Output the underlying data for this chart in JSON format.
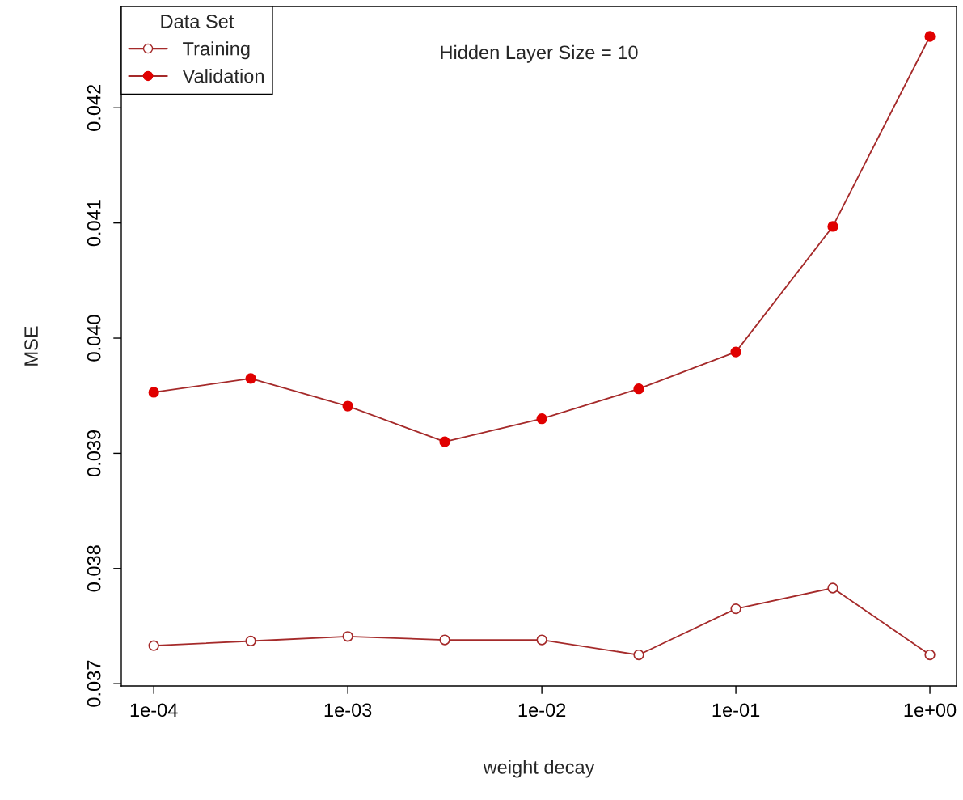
{
  "chart_data": {
    "type": "line",
    "xlabel": "weight decay",
    "ylabel": "MSE",
    "legend_title": "Data Set",
    "legend": "top left",
    "log": "x",
    "grid": false,
    "marker": "circle",
    "annotations": [
      "Hidden Layer Size = 10"
    ],
    "x": [
      0.0001,
      0.000316,
      0.001,
      0.00316,
      0.01,
      0.0316,
      0.1,
      0.316,
      1
    ],
    "series": [
      {
        "name": "Training",
        "color": "#a52a2a",
        "colors": [
          "#ffffff",
          "#ffffff",
          "#ffffff",
          "#ffffff",
          "#ffffff",
          "#ffffff",
          "#ffffff",
          "#ffffff",
          "#ffffff"
        ],
        "values": [
          0.03733,
          0.03737,
          0.03741,
          0.03738,
          0.03738,
          0.03725,
          0.03765,
          0.03783,
          0.03725
        ]
      },
      {
        "name": "Validation",
        "color": "#a52a2a",
        "colors": [
          "#e00000",
          "#e00000",
          "#e00000",
          "#e00000",
          "#e00000",
          "#e00000",
          "#e00000",
          "#e00000",
          "#e00000"
        ],
        "values": [
          0.03953,
          0.03965,
          0.03941,
          0.0391,
          0.0393,
          0.03956,
          0.03988,
          0.04097,
          0.04262
        ]
      }
    ],
    "xlim": [
      6.8e-05,
      1.372
    ],
    "ylim": [
      0.03698,
      0.04288
    ],
    "xticks": [
      {
        "value": 0.0001,
        "label": "1e-04"
      },
      {
        "value": 0.001,
        "label": "1e-03"
      },
      {
        "value": 0.01,
        "label": "1e-02"
      },
      {
        "value": 0.1,
        "label": "1e-01"
      },
      {
        "value": 1,
        "label": "1e+00"
      }
    ],
    "yticks": [
      {
        "value": 0.037,
        "label": "0.037"
      },
      {
        "value": 0.038,
        "label": "0.038"
      },
      {
        "value": 0.039,
        "label": "0.039"
      },
      {
        "value": 0.04,
        "label": "0.040"
      },
      {
        "value": 0.041,
        "label": "0.041"
      },
      {
        "value": 0.042,
        "label": "0.042"
      }
    ]
  }
}
